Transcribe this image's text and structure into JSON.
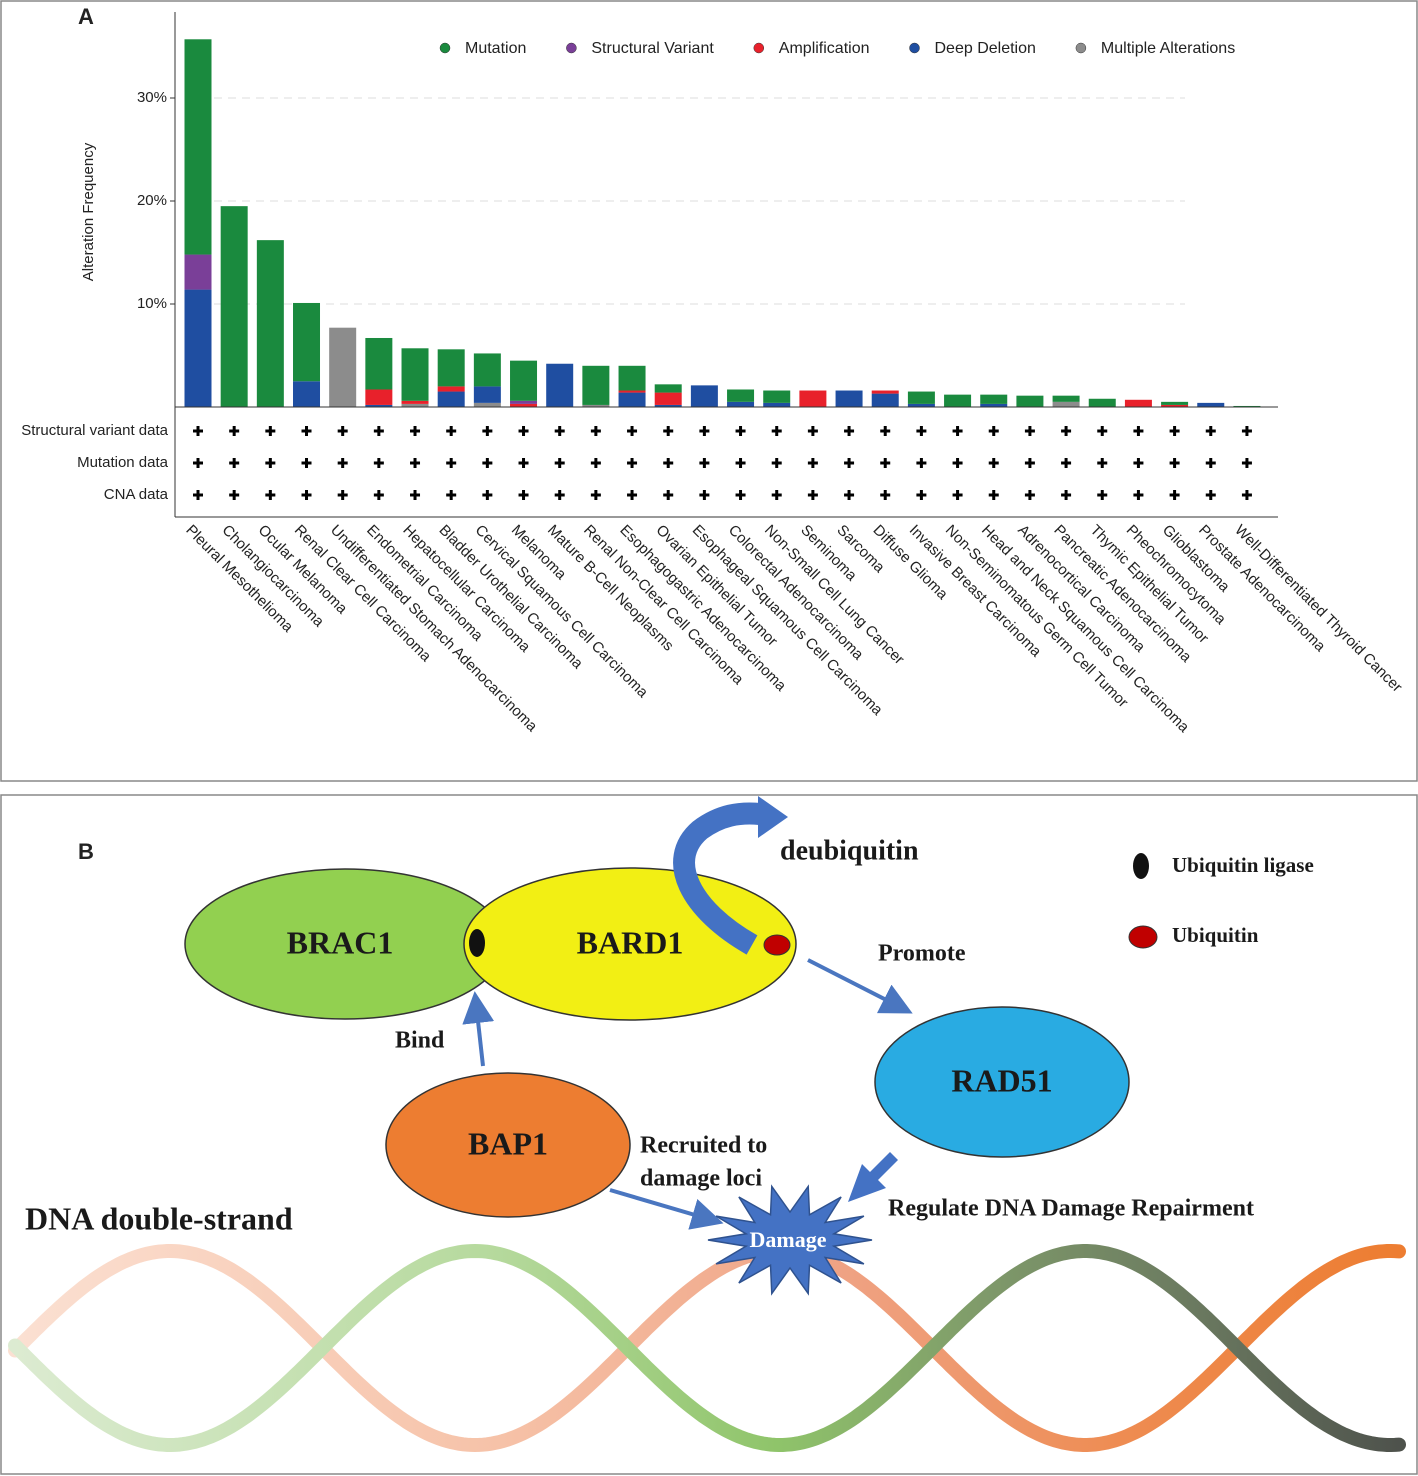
{
  "chart_data": {
    "type": "stacked_bar",
    "panel_label": "A",
    "ylabel": "Alteration Frequency",
    "categories": [
      "Pleural Mesothelioma",
      "Cholangiocarcinoma",
      "Ocular Melanoma",
      "Renal Clear Cell Carcinoma",
      "Undifferentiated Stomach Adenocarcinoma",
      "Endometrial Carcinoma",
      "Hepatocellular Carcinoma",
      "Bladder Urothelial Carcinoma",
      "Cervical Squamous Cell Carcinoma",
      "Melanoma",
      "Mature B-Cell Neoplasms",
      "Renal Non-Clear Cell Carcinoma",
      "Esophagogastric Adenocarcinoma",
      "Ovarian Epithelial Tumor",
      "Esophageal Squamous Cell Carcinoma",
      "Colorectal Adenocarcinoma",
      "Non-Small Cell Lung Cancer",
      "Seminoma",
      "Sarcoma",
      "Diffuse Glioma",
      "Invasive Breast Carcinoma",
      "Non-Seminomatous Germ Cell Tumor",
      "Head and Neck Squamous Cell Carcinoma",
      "Adrenocortical Carcinoma",
      "Pancreatic Adenocarcinoma",
      "Thymic Epithelial Tumor",
      "Pheochromocytoma",
      "Glioblastoma",
      "Prostate Adenocarcinoma",
      "Well-Differentiated Thyroid Cancer"
    ],
    "series": [
      {
        "name": "Mutation",
        "color": "#1a8a3e",
        "values": [
          20.9,
          19.5,
          16.2,
          7.6,
          0,
          5.0,
          5.1,
          3.6,
          3.2,
          3.9,
          0,
          3.8,
          2.4,
          0.8,
          0,
          1.2,
          1.2,
          0,
          0,
          0,
          1.2,
          1.2,
          0.9,
          1.1,
          0.6,
          0.8,
          0,
          0.3,
          0,
          0.1
        ]
      },
      {
        "name": "Structural Variant",
        "color": "#7a3f98",
        "values": [
          3.4,
          0,
          0,
          0,
          0,
          0,
          0,
          0,
          0,
          0.3,
          0,
          0,
          0,
          0,
          0,
          0,
          0,
          0,
          0,
          0,
          0,
          0,
          0,
          0,
          0,
          0,
          0,
          0,
          0,
          0
        ]
      },
      {
        "name": "Amplification",
        "color": "#e8212b",
        "values": [
          0,
          0,
          0,
          0,
          0,
          1.5,
          0.3,
          0.5,
          0,
          0.3,
          0,
          0,
          0.2,
          1.2,
          0,
          0,
          0,
          1.6,
          0,
          0.3,
          0,
          0,
          0,
          0,
          0,
          0,
          0.7,
          0.2,
          0,
          0
        ]
      },
      {
        "name": "Deep Deletion",
        "color": "#1f4ea1",
        "values": [
          11.4,
          0,
          0,
          2.5,
          0,
          0.2,
          0,
          1.5,
          1.6,
          0,
          4.2,
          0,
          1.4,
          0.2,
          2.1,
          0.5,
          0.4,
          0,
          1.6,
          1.3,
          0.3,
          0,
          0.3,
          0,
          0,
          0,
          0,
          0,
          0.4,
          0
        ]
      },
      {
        "name": "Multiple Alterations",
        "color": "#8c8c8c",
        "values": [
          0,
          0,
          0,
          0,
          7.7,
          0,
          0.3,
          0,
          0.4,
          0,
          0,
          0.2,
          0,
          0,
          0,
          0,
          0,
          0,
          0,
          0,
          0,
          0,
          0,
          0,
          0.5,
          0,
          0,
          0,
          0,
          0
        ]
      }
    ],
    "ylim": [
      0,
      38
    ],
    "yticks": [
      {
        "value": 10,
        "label": "10%"
      },
      {
        "value": 20,
        "label": "20%"
      },
      {
        "value": 30,
        "label": "30%"
      }
    ],
    "grid": true,
    "legend": "top",
    "data_rows": [
      "Structural variant data",
      "Mutation data",
      "CNA data"
    ]
  },
  "diagram": {
    "panel_label": "B",
    "nodes": [
      "BRAC1",
      "BARD1",
      "RAD51",
      "BAP1"
    ],
    "damage": "Damage",
    "legend": [
      "Ubiquitin  ligase",
      "Ubiquitin"
    ],
    "annotations": {
      "deubiquitin": "deubiquitin",
      "promote": "Promote",
      "bind": "Bind",
      "recruited": [
        "Recruited to",
        "damage loci"
      ],
      "regulate": "Regulate DNA Damage Repairment",
      "dna": "DNA double-strand"
    }
  }
}
